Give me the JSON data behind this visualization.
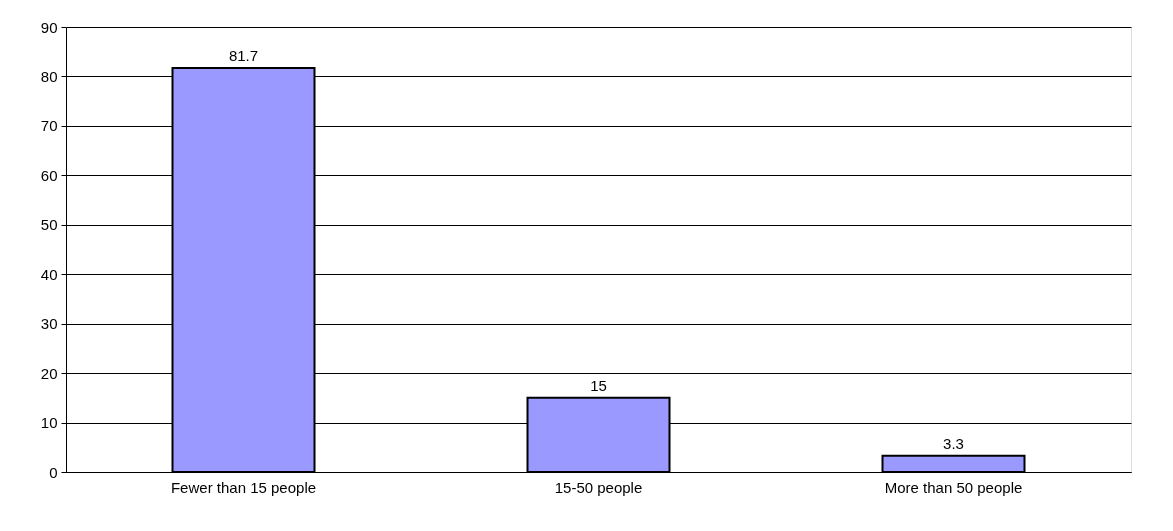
{
  "chart_data": {
    "type": "bar",
    "categories": [
      "Fewer than 15 people",
      "15-50 people",
      "More than 50 people"
    ],
    "values": [
      81.7,
      15,
      3.3
    ],
    "color": "#9999ff",
    "ylim": [
      0,
      90
    ],
    "yticks": [
      0,
      10,
      20,
      30,
      40,
      50,
      60,
      70,
      80,
      90
    ],
    "grid": "y",
    "data_labels": true
  }
}
